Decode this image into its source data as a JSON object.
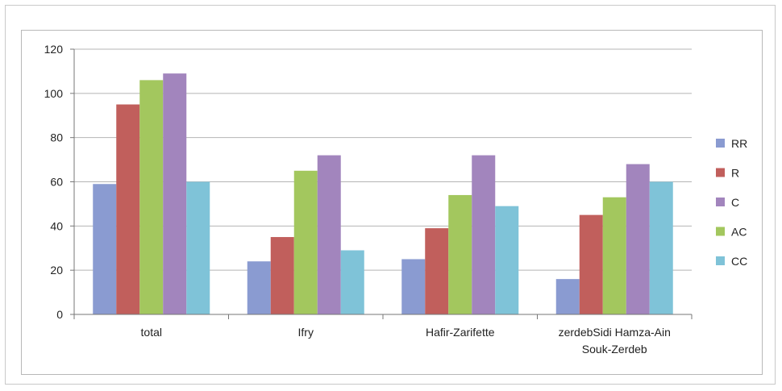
{
  "chart_data": {
    "type": "bar",
    "categories": [
      "total",
      "Ifry",
      "Hafir-Zarifette",
      "zerdebSidi Hamza-Ain\nSouk-Zerdeb"
    ],
    "series": [
      {
        "name": "RR",
        "values": [
          59,
          24,
          25,
          16
        ],
        "color": "#8a9bd1"
      },
      {
        "name": "R",
        "values": [
          95,
          35,
          39,
          45
        ],
        "color": "#c15f5c"
      },
      {
        "name": "AC",
        "values": [
          106,
          65,
          54,
          53
        ],
        "color": "#a3c75e"
      },
      {
        "name": "C",
        "values": [
          109,
          72,
          72,
          68
        ],
        "color": "#a285bd"
      },
      {
        "name": "CC",
        "values": [
          60,
          29,
          49,
          60
        ],
        "color": "#7fc3d8"
      }
    ],
    "legend_order": [
      "RR",
      "R",
      "C",
      "AC",
      "CC"
    ],
    "yticks": [
      0,
      20,
      40,
      60,
      80,
      100,
      120
    ],
    "ylim": [
      0,
      120
    ],
    "grid": true,
    "legend_position": "right"
  }
}
